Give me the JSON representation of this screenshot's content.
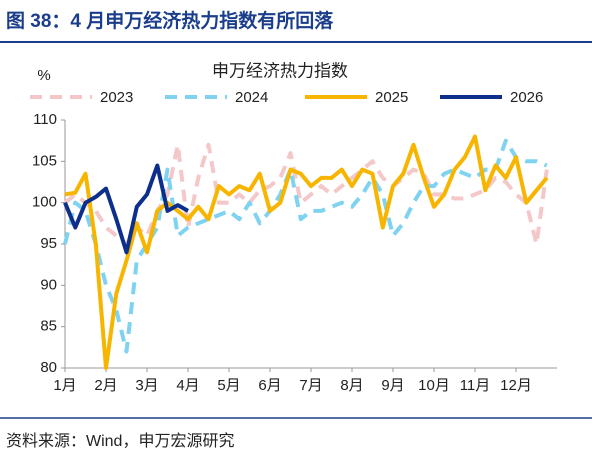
{
  "header": {
    "title": "图 38：4 月申万经济热力指数有所回落"
  },
  "chart_data": {
    "type": "line",
    "title": "申万经济热力指数",
    "y_label": "%",
    "x": [
      1,
      1.25,
      1.5,
      1.75,
      2,
      2.25,
      2.5,
      2.75,
      3,
      3.25,
      3.5,
      3.75,
      4,
      4.25,
      4.5,
      4.75,
      5,
      5.25,
      5.5,
      5.75,
      6,
      6.25,
      6.5,
      6.75,
      7,
      7.25,
      7.5,
      7.75,
      8,
      8.25,
      8.5,
      8.75,
      9,
      9.25,
      9.5,
      9.75,
      10,
      10.25,
      10.5,
      10.75,
      11,
      11.25,
      11.5,
      11.75,
      12,
      12.25,
      12.5,
      12.75
    ],
    "xlim": [
      1,
      13
    ],
    "xticks": [
      {
        "value": 1,
        "label": "1月"
      },
      {
        "value": 2,
        "label": "2月"
      },
      {
        "value": 3,
        "label": "3月"
      },
      {
        "value": 4,
        "label": "4月"
      },
      {
        "value": 5,
        "label": "5月"
      },
      {
        "value": 6,
        "label": "6月"
      },
      {
        "value": 7,
        "label": "7月"
      },
      {
        "value": 8,
        "label": "8月"
      },
      {
        "value": 9,
        "label": "9月"
      },
      {
        "value": 10,
        "label": "10月"
      },
      {
        "value": 11,
        "label": "11月"
      },
      {
        "value": 12,
        "label": "12月"
      }
    ],
    "ylim": [
      80,
      110
    ],
    "yticks": [
      80,
      85,
      90,
      95,
      100,
      105,
      110
    ],
    "grid": false,
    "series": [
      {
        "name": "2023",
        "color": "#f4c7c9",
        "dashed": true,
        "width": 4,
        "values": [
          100,
          101,
          100,
          99,
          97,
          96,
          95,
          97,
          96,
          99,
          101,
          107,
          97,
          103,
          107,
          100,
          100,
          101,
          100,
          101.5,
          102,
          103,
          106,
          100,
          101,
          102,
          101,
          102,
          103,
          104,
          105,
          103,
          102,
          103,
          104,
          103.5,
          101,
          101,
          100.5,
          100.5,
          101,
          101.5,
          103,
          102.5,
          101,
          100,
          95,
          104
        ]
      },
      {
        "name": "2024",
        "color": "#7fd3f0",
        "dashed": true,
        "width": 4,
        "values": [
          95,
          100,
          99,
          95,
          90,
          87,
          82,
          93,
          95,
          97,
          104,
          96,
          97,
          97.5,
          98,
          98.5,
          99,
          98,
          100,
          97.5,
          99,
          101,
          104,
          98,
          99,
          99,
          99.5,
          100,
          99.5,
          101,
          103,
          101,
          96,
          97.5,
          100,
          102,
          102,
          103.5,
          104,
          103.5,
          103,
          104,
          104,
          107.5,
          105.5,
          105,
          105,
          104.5
        ]
      },
      {
        "name": "2025",
        "color": "#f7b500",
        "dashed": false,
        "width": 4,
        "values": [
          101,
          101.2,
          103.5,
          95,
          80,
          89,
          93,
          97.5,
          94,
          99,
          100,
          99,
          98,
          99.5,
          98,
          102,
          101,
          102,
          101.5,
          103.5,
          99,
          100,
          104,
          103.5,
          102,
          103,
          103,
          104,
          102,
          104,
          103.5,
          97,
          102,
          103.5,
          107,
          103,
          99.5,
          101,
          104,
          105.5,
          108,
          101.5,
          104.5,
          103,
          105.5,
          100,
          101.5,
          103
        ]
      },
      {
        "name": "2026",
        "color": "#0d2f8c",
        "dashed": false,
        "width": 4,
        "values": [
          100,
          97,
          100,
          100.7,
          101.7,
          98,
          94,
          99.5,
          101,
          104.5,
          99,
          99.7,
          99,
          null,
          null,
          null,
          null,
          null,
          null,
          null,
          null,
          null,
          null,
          null,
          null,
          null,
          null,
          null,
          null,
          null,
          null,
          null,
          null,
          null,
          null,
          null,
          null,
          null,
          null,
          null,
          null,
          null,
          null,
          null,
          null,
          null,
          null,
          null
        ]
      }
    ]
  },
  "footer": {
    "source": "资料来源：Wind，申万宏源研究"
  }
}
